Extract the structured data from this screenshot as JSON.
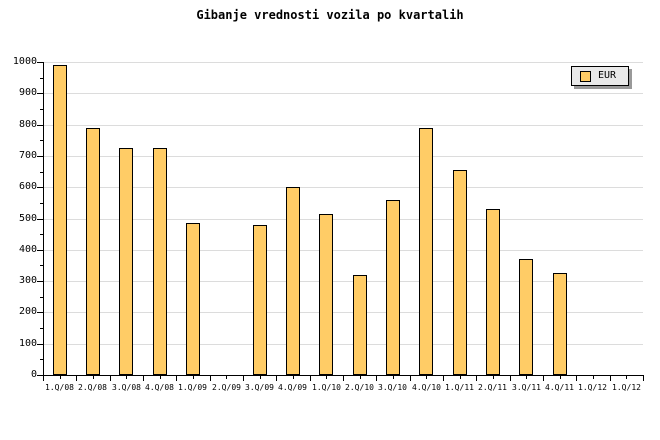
{
  "chart_data": {
    "type": "bar",
    "title": "Gibanje vrednosti vozila po kvartalih",
    "categories": [
      "1.Q/08",
      "2.Q/08",
      "3.Q/08",
      "4.Q/08",
      "1.Q/09",
      "2.Q/09",
      "3.Q/09",
      "4.Q/09",
      "1.Q/10",
      "2.Q/10",
      "3.Q/10",
      "4.Q/10",
      "1.Q/11",
      "2.Q/11",
      "3.Q/11",
      "4.Q/11",
      "1.Q/12",
      "1.Q/12"
    ],
    "series": [
      {
        "name": "EUR",
        "values": [
          990,
          790,
          725,
          725,
          485,
          null,
          480,
          600,
          515,
          320,
          560,
          790,
          655,
          530,
          370,
          325,
          null,
          null
        ]
      }
    ],
    "xlabel": "",
    "ylabel": "",
    "ylim": [
      0,
      1000
    ],
    "ytick_step": 100,
    "ytick_minor_step": 50,
    "yticklabels": [
      "0",
      "100",
      "200",
      "300",
      "400",
      "500",
      "600",
      "700",
      "800",
      "900",
      "1000"
    ],
    "grid": "horizontal-major",
    "legend_position": "top-right",
    "legend_label": "EUR"
  },
  "colors": {
    "background": "#FFFFFF",
    "bar_fill": "#FFCC66",
    "bar_border": "#000000",
    "grid": "#DCDCDC",
    "axis": "#000000",
    "text": "#000000",
    "legend_bg": "#E9E9E9",
    "legend_border": "#000000",
    "legend_shadow": "#999999"
  }
}
